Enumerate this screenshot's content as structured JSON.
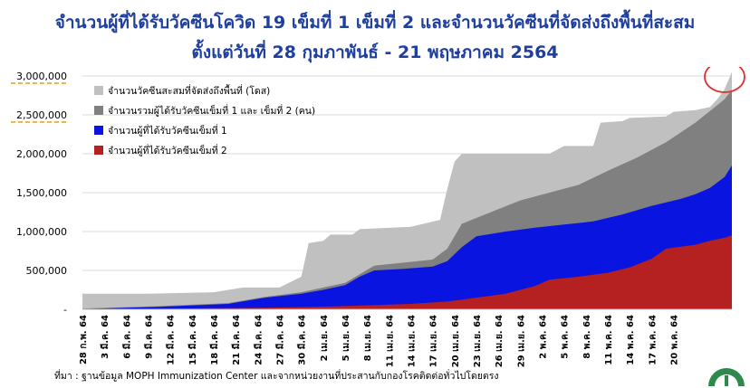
{
  "header": {
    "title_line1": "จำนวนผู้ที่ได้รับวัคซีนโควิด 19 เข็มที่ 1 เข็มที่ 2 และจำนวนวัคซีนที่จัดส่งถึงพื้นที่สะสม",
    "title_line2": "ตั้งแต่วันที่ 28 กุมภาพันธ์ - 21 พฤษภาคม 2564"
  },
  "footer": {
    "source": "ที่มา : ฐานข้อมูล MOPH  Immunization Center  และจากหน่วยงานที่ประสานกับกองโรคติดต่อทั่วไปโดยตรง"
  },
  "colors": {
    "delivered": "#c0c0c0",
    "total": "#808080",
    "dose1": "#0a14e0",
    "dose2": "#b52020",
    "title": "#1f3f9f",
    "highlight_circle": "#e03030",
    "dashed_marker": "#e0a020"
  },
  "chart_data": {
    "type": "area",
    "title": "",
    "xlabel": "",
    "ylabel": "",
    "ylim": [
      0,
      3000000
    ],
    "grid": true,
    "legend_position": "top-left",
    "y_ticks": [
      "-",
      "500,000",
      "1,000,000",
      "1,500,000",
      "2,000,000",
      "2,500,000",
      "3,000,000"
    ],
    "x_tick_labels": [
      "28 ก.พ. 64",
      "3 มี.ค. 64",
      "6 มี.ค. 64",
      "9 มี.ค. 64",
      "12 มี.ค. 64",
      "15 มี.ค. 64",
      "18 มี.ค. 64",
      "21 มี.ค. 64",
      "24 มี.ค. 64",
      "27 มี.ค. 64",
      "30 มี.ค. 64",
      "2 เม.ย. 64",
      "5 เม.ย. 64",
      "8 เม.ย. 64",
      "11 เม.ย. 64",
      "14 เม.ย. 64",
      "17 เม.ย. 64",
      "20 เม.ย. 64",
      "23 เม.ย. 64",
      "26 เม.ย. 64",
      "29 เม.ย. 64",
      "2 พ.ค. 64",
      "5 พ.ค. 64",
      "8 พ.ค. 64",
      "11 พ.ค. 64",
      "14 พ.ค. 64",
      "17 พ.ค. 64",
      "20 พ.ค. 64"
    ],
    "x_range": [
      "28 ก.พ. 64",
      "21 พ.ค. 64"
    ],
    "series": [
      {
        "name": "จำนวนวัคซีนสะสมที่จัดส่งถึงพื้นที่ (โดส)",
        "color_key": "delivered",
        "points": [
          [
            0,
            200000
          ],
          [
            9,
            200000
          ],
          [
            18,
            220000
          ],
          [
            22,
            280000
          ],
          [
            27,
            280000
          ],
          [
            30,
            420000
          ],
          [
            31,
            850000
          ],
          [
            33,
            880000
          ],
          [
            34,
            960000
          ],
          [
            37,
            960000
          ],
          [
            38,
            1030000
          ],
          [
            45,
            1060000
          ],
          [
            49,
            1150000
          ],
          [
            50,
            1550000
          ],
          [
            51,
            1900000
          ],
          [
            52,
            2000000
          ],
          [
            64,
            2000000
          ],
          [
            66,
            2100000
          ],
          [
            70,
            2100000
          ],
          [
            71,
            2400000
          ],
          [
            74,
            2420000
          ],
          [
            75,
            2460000
          ],
          [
            80,
            2480000
          ],
          [
            81,
            2540000
          ],
          [
            84,
            2560000
          ],
          [
            86,
            2600000
          ],
          [
            87,
            2700000
          ],
          [
            88,
            2830000
          ],
          [
            89,
            3050000
          ]
        ]
      },
      {
        "name": "จำนวนรวมผู้ได้รับวัคซีนเข็มที่ 1 และ เข็มที่ 2 (คน)",
        "color_key": "total",
        "points": [
          [
            0,
            10000
          ],
          [
            10,
            40000
          ],
          [
            20,
            80000
          ],
          [
            25,
            160000
          ],
          [
            30,
            220000
          ],
          [
            33,
            280000
          ],
          [
            36,
            340000
          ],
          [
            38,
            450000
          ],
          [
            40,
            560000
          ],
          [
            44,
            600000
          ],
          [
            48,
            640000
          ],
          [
            50,
            780000
          ],
          [
            52,
            1100000
          ],
          [
            56,
            1250000
          ],
          [
            60,
            1400000
          ],
          [
            64,
            1500000
          ],
          [
            68,
            1600000
          ],
          [
            72,
            1780000
          ],
          [
            76,
            1950000
          ],
          [
            80,
            2150000
          ],
          [
            84,
            2400000
          ],
          [
            86,
            2550000
          ],
          [
            88,
            2700000
          ],
          [
            89,
            2820000
          ]
        ]
      },
      {
        "name": "จำนวนผู้ที่ได้รับวัคซีนเข็มที่ 1",
        "color_key": "dose1",
        "points": [
          [
            0,
            5000
          ],
          [
            10,
            30000
          ],
          [
            20,
            70000
          ],
          [
            25,
            150000
          ],
          [
            30,
            200000
          ],
          [
            33,
            250000
          ],
          [
            36,
            310000
          ],
          [
            38,
            420000
          ],
          [
            40,
            500000
          ],
          [
            44,
            520000
          ],
          [
            48,
            550000
          ],
          [
            50,
            620000
          ],
          [
            52,
            800000
          ],
          [
            54,
            940000
          ],
          [
            58,
            1000000
          ],
          [
            62,
            1050000
          ],
          [
            66,
            1090000
          ],
          [
            70,
            1130000
          ],
          [
            74,
            1220000
          ],
          [
            78,
            1330000
          ],
          [
            82,
            1420000
          ],
          [
            84,
            1480000
          ],
          [
            86,
            1560000
          ],
          [
            88,
            1700000
          ],
          [
            89,
            1850000
          ]
        ]
      },
      {
        "name": "จำนวนผู้ที่ได้รับวัคซีนเข็มที่ 2",
        "color_key": "dose2",
        "points": [
          [
            0,
            0
          ],
          [
            25,
            20000
          ],
          [
            35,
            40000
          ],
          [
            45,
            70000
          ],
          [
            50,
            100000
          ],
          [
            54,
            150000
          ],
          [
            58,
            200000
          ],
          [
            62,
            300000
          ],
          [
            64,
            380000
          ],
          [
            68,
            420000
          ],
          [
            72,
            470000
          ],
          [
            75,
            540000
          ],
          [
            78,
            650000
          ],
          [
            80,
            780000
          ],
          [
            84,
            830000
          ],
          [
            86,
            880000
          ],
          [
            88,
            920000
          ],
          [
            89,
            950000
          ]
        ]
      }
    ]
  }
}
